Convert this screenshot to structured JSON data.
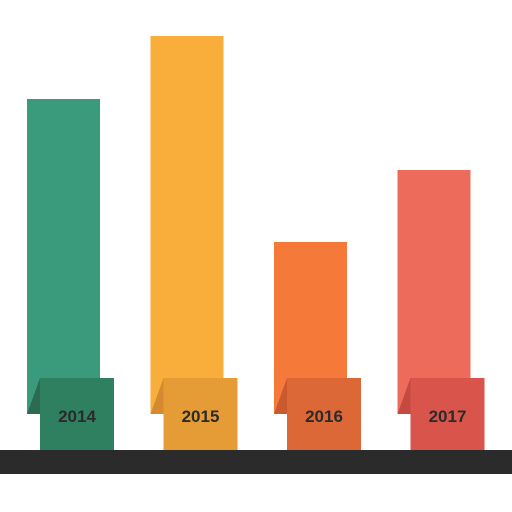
{
  "chart_data": {
    "type": "bar",
    "categories": [
      "2014",
      "2015",
      "2016",
      "2017"
    ],
    "values": [
      315,
      378,
      172,
      244
    ],
    "colors": {
      "bars": [
        "#3a9b7c",
        "#f9ae3c",
        "#f57a39",
        "#ec6b5a"
      ],
      "tabs": [
        "#2f7f61",
        "#e59c37",
        "#dc6838",
        "#d9544a"
      ],
      "tab_folds": [
        "#2a6b52",
        "#d58a2f",
        "#c95a30",
        "#c44a40"
      ],
      "baseline": "#2b2b2b"
    },
    "title": "",
    "xlabel": "",
    "ylabel": "",
    "grid": false
  }
}
